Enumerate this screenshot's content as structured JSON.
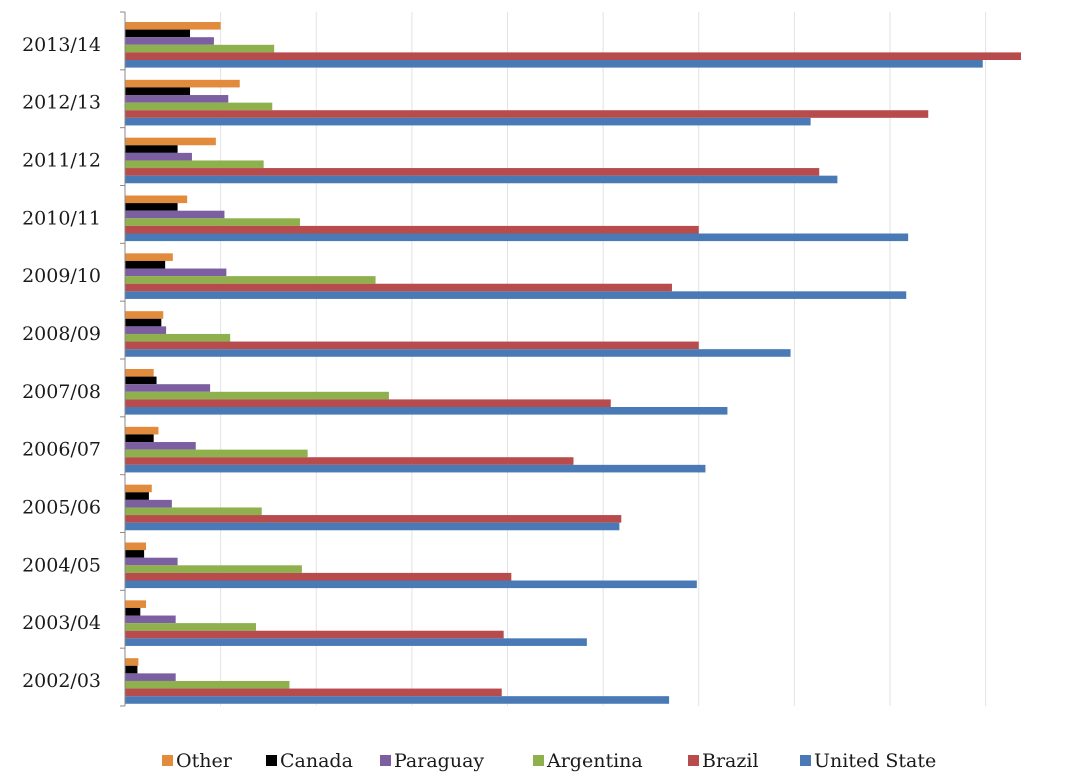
{
  "chart_data": {
    "type": "bar",
    "orientation": "horizontal",
    "categories": [
      "2013/14",
      "2012/13",
      "2011/12",
      "2010/11",
      "2009/10",
      "2008/09",
      "2007/08",
      "2006/07",
      "2005/06",
      "2004/05",
      "2003/04",
      "2002/03"
    ],
    "series": [
      {
        "name": "Other",
        "color": "#E38B3C",
        "values": [
          1.0,
          1.2,
          0.95,
          0.65,
          0.5,
          0.4,
          0.3,
          0.35,
          0.28,
          0.22,
          0.22,
          0.14
        ]
      },
      {
        "name": "Canada",
        "color": "#000000",
        "values": [
          0.68,
          0.68,
          0.55,
          0.55,
          0.42,
          0.38,
          0.33,
          0.3,
          0.25,
          0.2,
          0.16,
          0.13
        ]
      },
      {
        "name": "Paraguay",
        "color": "#7C5FA0",
        "values": [
          0.93,
          1.08,
          0.7,
          1.04,
          1.06,
          0.43,
          0.89,
          0.74,
          0.49,
          0.55,
          0.53,
          0.53
        ]
      },
      {
        "name": "Argentina",
        "color": "#8EB04D",
        "values": [
          1.56,
          1.54,
          1.45,
          1.83,
          2.62,
          1.1,
          2.76,
          1.91,
          1.43,
          1.85,
          1.37,
          1.72
        ]
      },
      {
        "name": "Brazil",
        "color": "#B84B4B",
        "values": [
          9.37,
          8.4,
          7.26,
          6.0,
          5.72,
          6.0,
          5.08,
          4.69,
          5.19,
          4.04,
          3.96,
          3.94
        ]
      },
      {
        "name": "United State",
        "color": "#4A7AB5",
        "values": [
          8.97,
          7.17,
          7.45,
          8.19,
          8.17,
          6.96,
          6.3,
          6.07,
          5.17,
          5.98,
          4.83,
          5.69
        ]
      }
    ],
    "xlim": [
      0,
      10
    ],
    "grid": true,
    "legend_position": "bottom"
  }
}
